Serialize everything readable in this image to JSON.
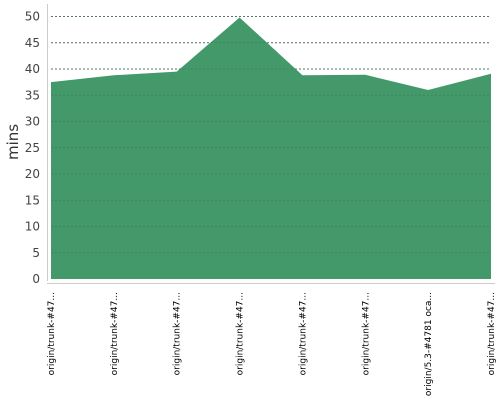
{
  "colors": {
    "area_fill": "#44996a",
    "grid": "#7a7a7a",
    "axis": "#cccccc"
  },
  "chart_data": {
    "type": "area",
    "title": "",
    "xlabel": "",
    "ylabel": "mins",
    "ylim": [
      0,
      50
    ],
    "yticks": [
      0,
      5,
      10,
      15,
      20,
      25,
      30,
      35,
      40,
      45,
      50
    ],
    "grid": "horizontal dashed",
    "legend": "none",
    "categories": [
      "origin/trunk-#47...",
      "origin/trunk-#47...",
      "origin/trunk-#47...",
      "origin/trunk-#47...",
      "origin/trunk-#47...",
      "origin/trunk-#47...",
      "origin/5.3-#4781 oca...",
      "origin/trunk-#47..."
    ],
    "series": [
      {
        "values": [
          37.5,
          38.8,
          39.5,
          49.8,
          38.8,
          38.9,
          36.0,
          39.1
        ]
      }
    ]
  }
}
